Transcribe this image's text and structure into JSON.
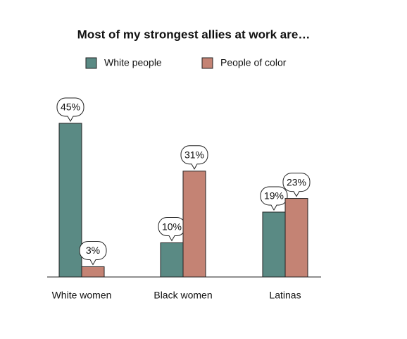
{
  "chart_data": {
    "type": "bar",
    "title": "Most of my strongest allies at work are…",
    "categories": [
      "White women",
      "Black women",
      "Latinas"
    ],
    "series": [
      {
        "name": "White people",
        "color": "#5a8a84",
        "values": [
          45,
          10,
          19
        ],
        "value_labels": [
          "45%",
          "10%",
          "19%"
        ]
      },
      {
        "name": "People of color",
        "color": "#c48374",
        "values": [
          3,
          31,
          23
        ],
        "value_labels": [
          "3%",
          "31%",
          "23%"
        ]
      }
    ]
  }
}
